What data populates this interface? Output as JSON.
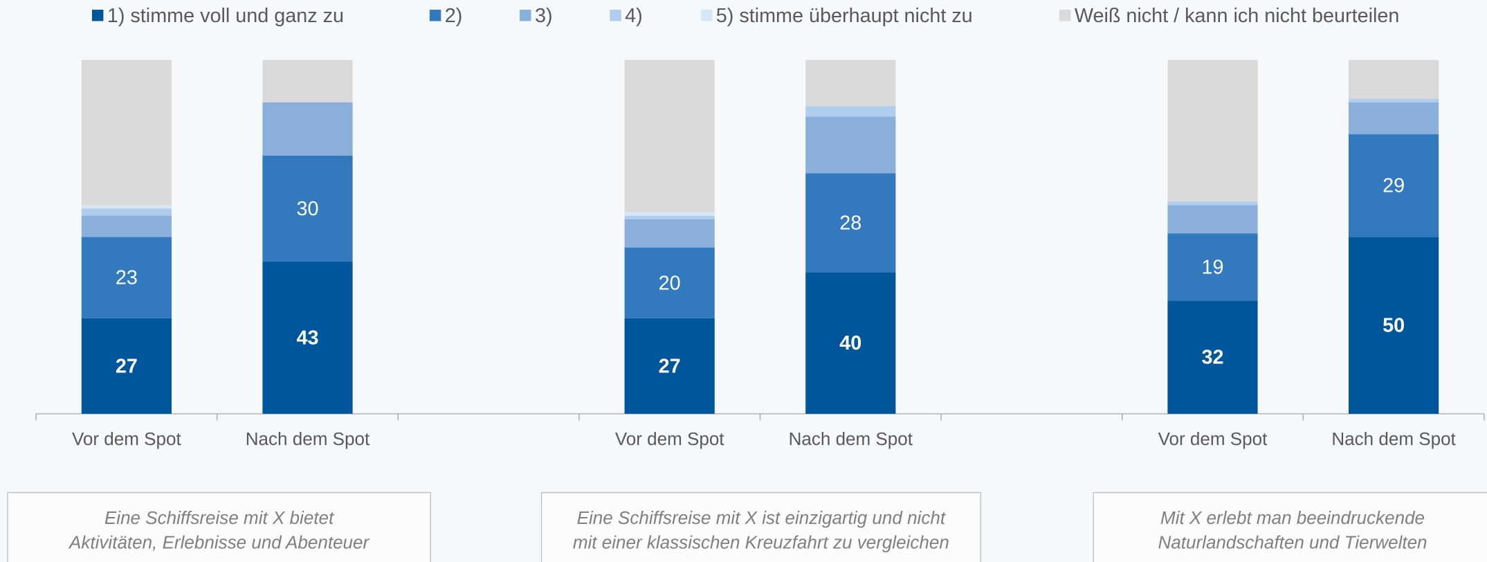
{
  "chart_data": {
    "type": "stacked_bar",
    "categories": [
      "Vor dem Spot",
      "Nach dem Spot",
      "Vor dem Spot",
      "Nach dem Spot",
      "Vor dem Spot",
      "Nach dem Spot"
    ],
    "groups": [
      {
        "lines": [
          "Eine Schiffsreise mit X bietet",
          "Aktivitäten, Erlebnisse und Abenteuer"
        ]
      },
      {
        "lines": [
          "Eine Schiffsreise mit X ist einzigartig und nicht",
          "mit einer klassischen Kreuzfahrt zu vergleichen"
        ]
      },
      {
        "lines": [
          "Mit X erlebt man beeindruckende",
          "Naturlandschaften und Tierwelten"
        ]
      }
    ],
    "ylim": [
      0,
      100
    ],
    "series": [
      {
        "name": "1) stimme voll und ganz zu",
        "color": "#00569a",
        "values": [
          27,
          43,
          27,
          40,
          32,
          50
        ]
      },
      {
        "name": "2)",
        "color": "#3279bd",
        "values": [
          23,
          30,
          20,
          28,
          19,
          29
        ]
      },
      {
        "name": "3)",
        "color": "#8aafdb",
        "values": [
          6,
          15,
          8,
          16,
          8,
          9
        ]
      },
      {
        "name": "4)",
        "color": "#b0cdee",
        "values": [
          2,
          0,
          1,
          3,
          1,
          1
        ]
      },
      {
        "name": "5) stimme überhaupt nicht zu",
        "color": "#d5e6f7",
        "values": [
          1,
          0,
          1,
          0,
          0,
          0
        ]
      },
      {
        "name": "Weiß nicht / kann ich nicht beurteilen",
        "color": "#d9d9d9",
        "values": [
          41,
          12,
          43,
          13,
          40,
          11
        ]
      }
    ]
  }
}
